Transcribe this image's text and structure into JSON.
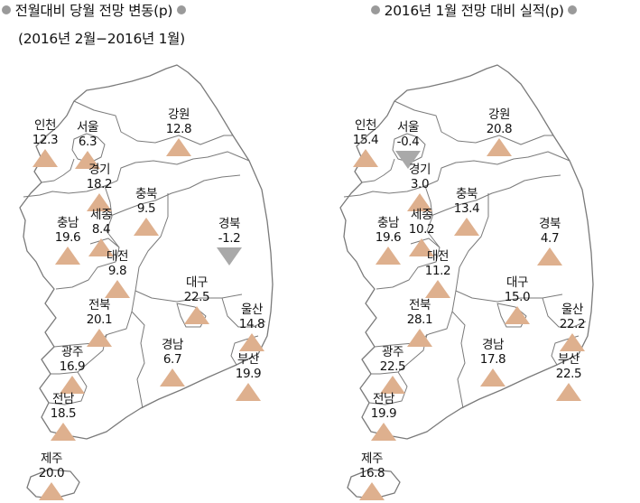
{
  "colors": {
    "up": "#deb08e",
    "down": "#a9a9a9",
    "border": "#7a7a7a",
    "bullet": "#9a9a9a"
  },
  "left": {
    "title_line1": "전월대비 당월 전망 변동(p)",
    "title_line2": "(2016년 2월−2016년 1월)",
    "chart_data": {
      "type": "table",
      "series": [
        {
          "region": "인천",
          "value": "12.3"
        },
        {
          "region": "서울",
          "value": "6.3"
        },
        {
          "region": "강원",
          "value": "12.8"
        },
        {
          "region": "경기",
          "value": "18.2"
        },
        {
          "region": "충북",
          "value": "9.5"
        },
        {
          "region": "충남",
          "value": "19.6"
        },
        {
          "region": "세종",
          "value": "8.4"
        },
        {
          "region": "경북",
          "value": "-1.2"
        },
        {
          "region": "대전",
          "value": "9.8"
        },
        {
          "region": "대구",
          "value": "22.5"
        },
        {
          "region": "울산",
          "value": "14.8"
        },
        {
          "region": "전북",
          "value": "20.1"
        },
        {
          "region": "광주",
          "value": "16.9"
        },
        {
          "region": "경남",
          "value": "6.7"
        },
        {
          "region": "부산",
          "value": "19.9"
        },
        {
          "region": "전남",
          "value": "18.5"
        },
        {
          "region": "제주",
          "value": "20.0"
        }
      ]
    }
  },
  "right": {
    "title_line1": "2016년 1월 전망 대비 실적(p)",
    "chart_data": {
      "type": "table",
      "series": [
        {
          "region": "인천",
          "value": "15.4"
        },
        {
          "region": "서울",
          "value": "-0.4"
        },
        {
          "region": "강원",
          "value": "20.8"
        },
        {
          "region": "경기",
          "value": "3.0"
        },
        {
          "region": "충북",
          "value": "13.4"
        },
        {
          "region": "충남",
          "value": "19.6"
        },
        {
          "region": "세종",
          "value": "10.2"
        },
        {
          "region": "경북",
          "value": "4.7"
        },
        {
          "region": "대전",
          "value": "11.2"
        },
        {
          "region": "대구",
          "value": "15.0"
        },
        {
          "region": "울산",
          "value": "22.2"
        },
        {
          "region": "전북",
          "value": "28.1"
        },
        {
          "region": "광주",
          "value": "22.5"
        },
        {
          "region": "경남",
          "value": "17.8"
        },
        {
          "region": "부산",
          "value": "22.5"
        },
        {
          "region": "전남",
          "value": "19.9"
        },
        {
          "region": "제주",
          "value": "16.8"
        }
      ]
    }
  }
}
